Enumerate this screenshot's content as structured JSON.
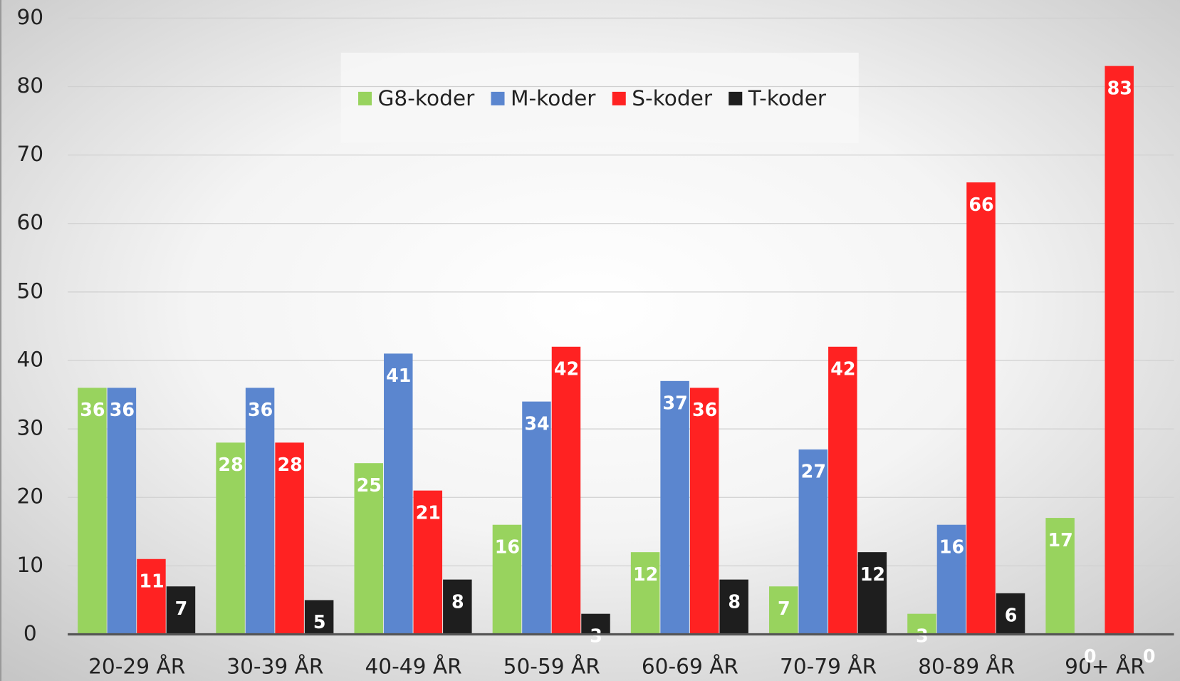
{
  "chart_data": {
    "type": "bar",
    "categories": [
      "20-29 ÅR",
      "30-39 ÅR",
      "40-49 ÅR",
      "50-59 ÅR",
      "60-69 ÅR",
      "70-79 ÅR",
      "80-89 ÅR",
      "90+ ÅR"
    ],
    "series": [
      {
        "name": "G8-koder",
        "color": "#98d35e",
        "values": [
          36,
          28,
          25,
          16,
          12,
          7,
          3,
          17
        ]
      },
      {
        "name": "M-koder",
        "color": "#5b86cf",
        "values": [
          36,
          36,
          41,
          34,
          37,
          27,
          16,
          0
        ]
      },
      {
        "name": "S-koder",
        "color": "#ff2222",
        "values": [
          11,
          28,
          21,
          42,
          36,
          42,
          66,
          83
        ]
      },
      {
        "name": "T-koder",
        "color": "#1e1e1e",
        "values": [
          7,
          5,
          8,
          3,
          8,
          12,
          6,
          0
        ]
      }
    ],
    "ylim": [
      0,
      90
    ],
    "yticks": [
      0,
      10,
      20,
      30,
      40,
      50,
      60,
      70,
      80,
      90
    ],
    "grid": true
  }
}
